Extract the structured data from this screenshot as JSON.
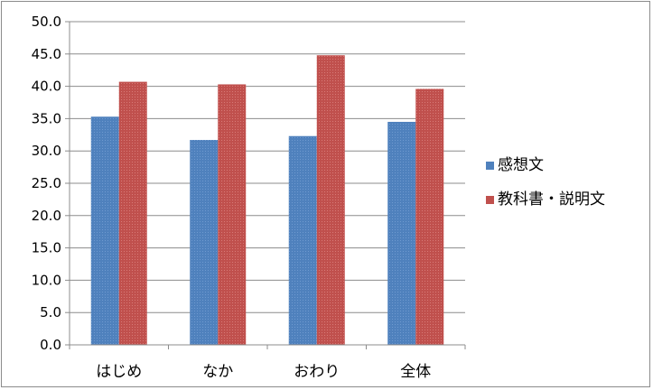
{
  "chart_data": {
    "type": "bar",
    "title": "",
    "xlabel": "",
    "ylabel": "",
    "categories": [
      "はじめ",
      "なか",
      "おわり",
      "全体"
    ],
    "series": [
      {
        "name": "感想文",
        "values": [
          35.3,
          31.7,
          32.3,
          34.5
        ],
        "color": "#4f81bd"
      },
      {
        "name": "教科書・説明文",
        "values": [
          40.7,
          40.3,
          44.8,
          39.6
        ],
        "color": "#c0504d"
      }
    ],
    "ylim": [
      0,
      50
    ],
    "ytick_step": 5,
    "ytick_labels": [
      "0.0",
      "5.0",
      "10.0",
      "15.0",
      "20.0",
      "25.0",
      "30.0",
      "35.0",
      "40.0",
      "45.0",
      "50.0"
    ],
    "grid": true,
    "legend_position": "right"
  }
}
